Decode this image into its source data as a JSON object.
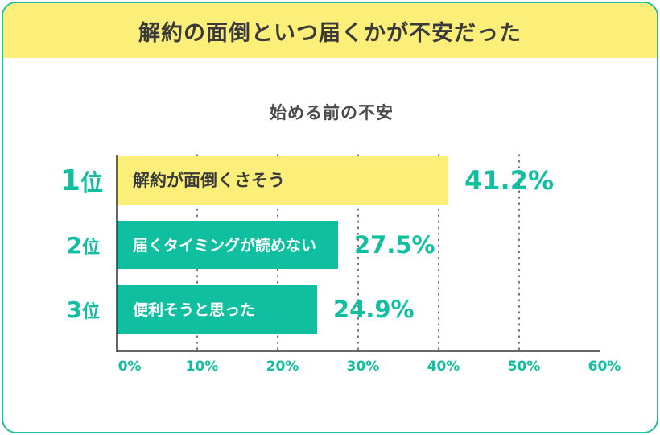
{
  "header": {
    "title": "解約の面倒といつ届くかが不安だった"
  },
  "chart_data": {
    "type": "bar",
    "orientation": "horizontal",
    "title": "始める前の不安",
    "rank_suffix": "位",
    "categories": [
      "解約が面倒くさそう",
      "届くタイミングが読めない",
      "便利そうと思った"
    ],
    "ranks": [
      "1",
      "2",
      "3"
    ],
    "values": [
      41.2,
      27.5,
      24.9
    ],
    "value_labels": [
      "41.2%",
      "27.5%",
      "24.9%"
    ],
    "xlim": [
      0,
      60
    ],
    "x_ticks": [
      0,
      10,
      20,
      30,
      40,
      50,
      60
    ],
    "x_tick_labels": [
      "0%",
      "10%",
      "20%",
      "30%",
      "40%",
      "50%",
      "60%"
    ],
    "grid": "vertical dotted",
    "colors": {
      "highlight_bar": "#fbef7a",
      "bar": "#10bfa0",
      "accent_text": "#10bfa0",
      "highlight_label": "#3a3a3a",
      "bar_label": "#ffffff",
      "grid": "#555555",
      "axis": "#333333"
    }
  }
}
